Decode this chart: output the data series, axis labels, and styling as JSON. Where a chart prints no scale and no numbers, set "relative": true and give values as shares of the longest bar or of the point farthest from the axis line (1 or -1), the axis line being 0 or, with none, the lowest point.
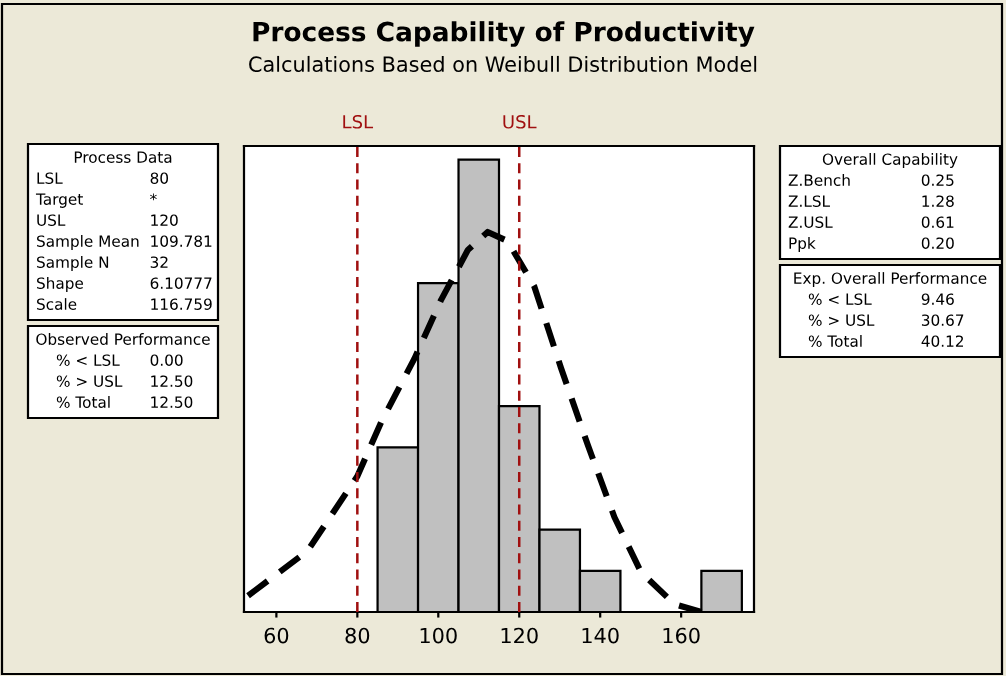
{
  "chart_data": {
    "type": "histogram",
    "title": "Process Capability of Productivity",
    "subtitle": "Calculations Based on Weibull Distribution Model",
    "relative": true,
    "bins": [
      85,
      95,
      105,
      115,
      125,
      135,
      145,
      155,
      165,
      175
    ],
    "series": [
      {
        "type": "histogram",
        "color": "#c0c0c0",
        "values": [
          0.364,
          0.727,
          1,
          0.455,
          0.182,
          0.091,
          0,
          0,
          0.091
        ]
      },
      {
        "type": "line",
        "color": "#000000",
        "line_style": "dashed",
        "x": [
          53,
          67.7,
          80,
          85.9,
          94.1,
          100.7,
          107.3,
          112.2,
          117.1,
          123.7,
          130.3,
          136.9,
          143.5,
          150.1,
          158.4,
          165
        ],
        "values": [
          0.036,
          0.135,
          0.3,
          0.42,
          0.56,
          0.69,
          0.8,
          0.84,
          0.82,
          0.72,
          0.54,
          0.37,
          0.21,
          0.088,
          0.017,
          0
        ]
      }
    ],
    "xlim": [
      52,
      178
    ],
    "xticks": [
      60,
      80,
      100,
      120,
      140,
      160
    ],
    "grid": false,
    "ref_lines": [
      {
        "axis": "x",
        "value": 80,
        "label": "LSL",
        "color": "#a01010",
        "line_style": "dashed"
      },
      {
        "axis": "x",
        "value": 120,
        "label": "USL",
        "color": "#a01010",
        "line_style": "dashed"
      }
    ],
    "annotations": [
      "Process Data\nLSL\t80\nTarget\t*\nUSL\t120\nSample Mean\t109.781\nSample N\t32\nShape\t6.10777\nScale\t116.759",
      "Observed Performance\n% < LSL\t0.00\n% > USL\t12.50\n% Total\t12.50",
      "Overall Capability\nZ.Bench\t0.25\nZ.LSL\t1.28\nZ.USL\t0.61\nPpk\t0.20",
      "Exp. Overall Performance\n% < LSL\t9.46\n% > USL\t30.67\n% Total\t40.12"
    ]
  }
}
